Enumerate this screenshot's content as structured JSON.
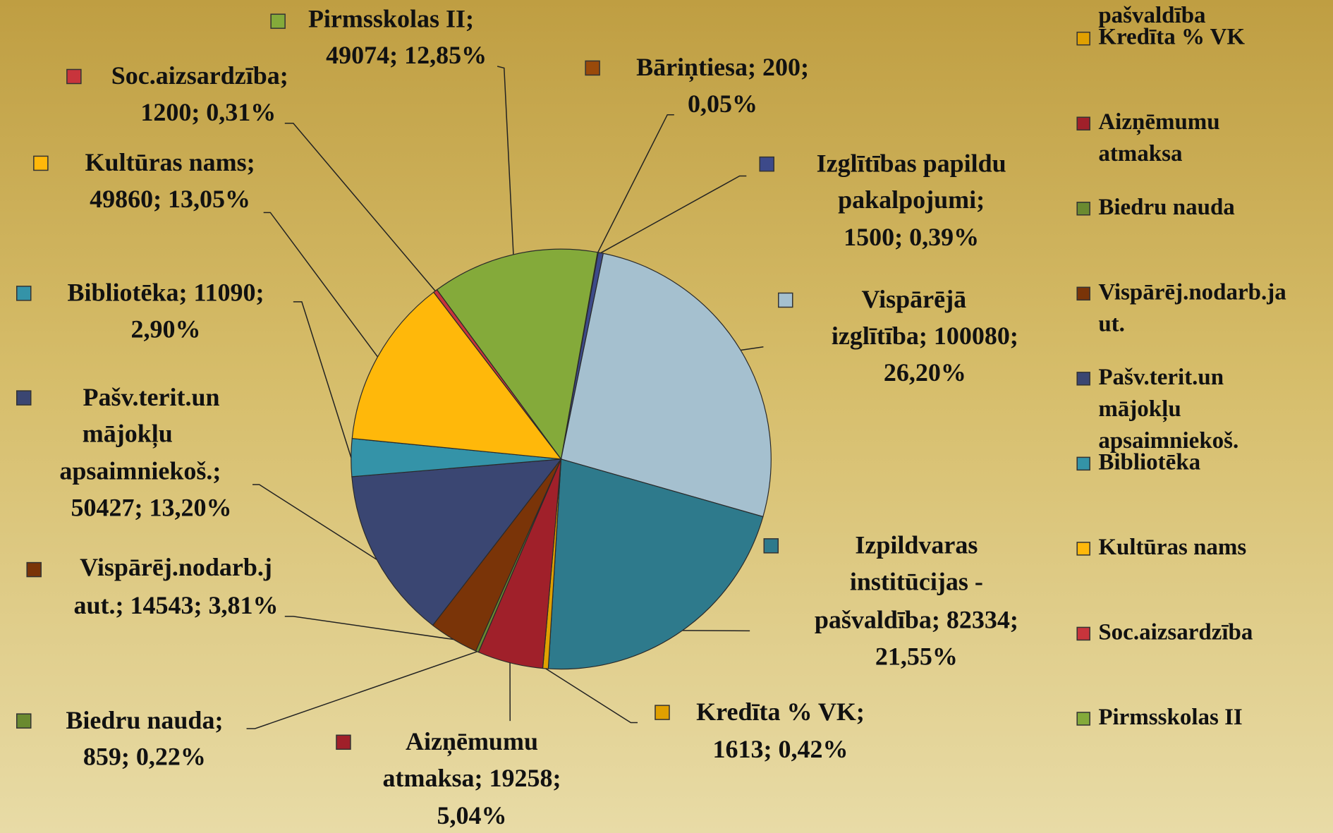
{
  "chart_data": {
    "type": "pie",
    "categories": [
      "Bāriņtiesa",
      "Izglītības papildu pakalpojumi",
      "Vispārējā izglītība",
      "Izpildvaras institūcijas - pašvaldība",
      "Kredīta % VK",
      "Aizņēmumu atmaksa",
      "Biedru nauda",
      "Vispārēj.nodarb.ja ut.",
      "Pašv.terit.un mājokļu apsaimniekoš.",
      "Bibliotēka",
      "Kultūras nams",
      "Soc.aizsardzība",
      "Pirmsskolas II"
    ],
    "values": [
      200,
      1500,
      100080,
      82334,
      1613,
      19258,
      859,
      14543,
      50427,
      11090,
      49860,
      1200,
      49074
    ],
    "percentages": [
      0.05,
      0.39,
      26.2,
      21.55,
      0.42,
      5.04,
      0.22,
      3.81,
      13.2,
      2.9,
      13.05,
      0.31,
      12.85
    ],
    "data_labels": [
      [
        "Bāriņtiesa; 200;",
        "0,05%"
      ],
      [
        "Izglītības papildu",
        "pakalpojumi;",
        "1500; 0,39%"
      ],
      [
        "Vispārējā",
        "izglītība; 100080;",
        "26,20%"
      ],
      [
        "Izpildvaras",
        "institūcijas -",
        "pašvaldība; 82334;",
        "21,55%"
      ],
      [
        "Kredīta % VK;",
        "1613; 0,42%"
      ],
      [
        "Aizņēmumu",
        "atmaksa; 19258;",
        "5,04%"
      ],
      [
        "Biedru nauda;",
        "859; 0,22%"
      ],
      [
        "Vispārēj.nodarb.j",
        "aut.; 14543; 3,81%"
      ],
      [
        "Pašv.terit.un",
        "mājokļu",
        "apsaimniekoš.;",
        "50427; 13,20%"
      ],
      [
        "Bibliotēka; 11090;",
        "2,90%"
      ],
      [
        "Kultūras nams;",
        "49860; 13,05%"
      ],
      [
        "Soc.aizsardzība;",
        "1200; 0,31%"
      ],
      [
        "Pirmsskolas II;",
        "49074; 12,85%"
      ]
    ],
    "colors": [
      "#9a4a0a",
      "#3d4a8a",
      "#a5c0cf",
      "#2e7a8c",
      "#e0a000",
      "#a0202a",
      "#6a8a30",
      "#7a3408",
      "#3a4672",
      "#3493a8",
      "#ffb80a",
      "#c8343c",
      "#84aa3a"
    ],
    "legend": "right"
  }
}
